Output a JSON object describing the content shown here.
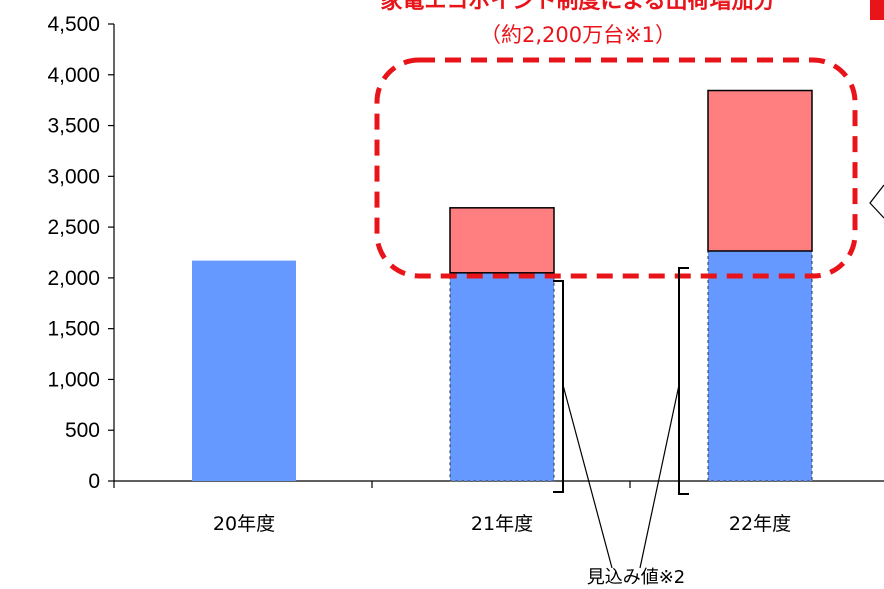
{
  "chart_data": {
    "type": "bar",
    "stacked": true,
    "categories": [
      "20年度",
      "21年度",
      "22年度"
    ],
    "series": [
      {
        "key": "base",
        "values": [
          2170,
          2050,
          2265
        ],
        "color": "#6699ff"
      },
      {
        "key": "increase",
        "values": [
          0,
          640,
          1580
        ],
        "color": "#ff7f80"
      }
    ],
    "ylim": [
      0,
      4500
    ],
    "yticks": [
      0,
      500,
      1000,
      1500,
      2000,
      2500,
      3000,
      3500,
      4000,
      4500
    ],
    "ytick_labels": [
      "0",
      "500",
      "1,000",
      "1,500",
      "2,000",
      "2,500",
      "3,000",
      "3,500",
      "4,000",
      "4,500"
    ],
    "grid": false,
    "colors": {
      "base": "#6699ff",
      "increase": "#ff7f80",
      "highlight": "#e8141a"
    }
  },
  "annotations": {
    "callout_line1": "家電エコポイント制度による出荷増加分",
    "callout_line2": "（約2,200万台※1）",
    "estimate_label": "見込み値※2"
  }
}
